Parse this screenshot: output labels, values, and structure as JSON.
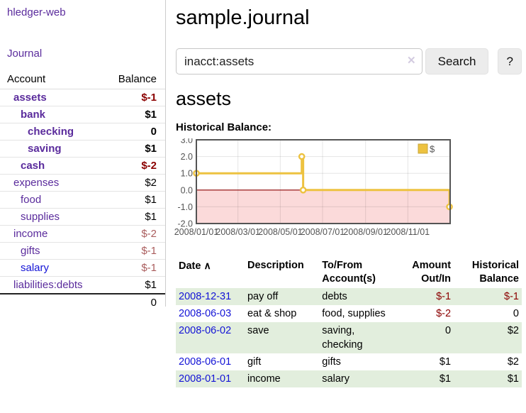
{
  "app": {
    "brand": "hledger-web",
    "nav_journal": "Journal"
  },
  "colors": {
    "link_purple": "#5a2b9c",
    "link_blue": "#1313d6",
    "negative_strong": "#8b0000",
    "negative_soft": "#aa5d5d",
    "row_green": "#e2eedd",
    "series_gold": "#edc240"
  },
  "sidebar": {
    "accounts_table": {
      "header_account": "Account",
      "header_balance": "Balance",
      "rows": [
        {
          "account": "assets",
          "balance": "$-1",
          "indent": 1,
          "bold": true,
          "balance_style": "neg-strong",
          "link": "purple"
        },
        {
          "account": "bank",
          "balance": "$1",
          "indent": 2,
          "bold": true,
          "balance_style": "",
          "link": "purple"
        },
        {
          "account": "checking",
          "balance": "0",
          "indent": 3,
          "bold": true,
          "balance_style": "",
          "link": "purple"
        },
        {
          "account": "saving",
          "balance": "$1",
          "indent": 3,
          "bold": true,
          "balance_style": "",
          "link": "purple"
        },
        {
          "account": "cash",
          "balance": "$-2",
          "indent": 2,
          "bold": true,
          "balance_style": "neg-strong",
          "link": "purple"
        },
        {
          "account": "expenses",
          "balance": "$2",
          "indent": 1,
          "bold": false,
          "balance_style": "",
          "link": "purple"
        },
        {
          "account": "food",
          "balance": "$1",
          "indent": 2,
          "bold": false,
          "balance_style": "",
          "link": "purple"
        },
        {
          "account": "supplies",
          "balance": "$1",
          "indent": 2,
          "bold": false,
          "balance_style": "",
          "link": "purple"
        },
        {
          "account": "income",
          "balance": "$-2",
          "indent": 1,
          "bold": false,
          "balance_style": "neg-soft",
          "link": "purple"
        },
        {
          "account": "gifts",
          "balance": "$-1",
          "indent": 2,
          "bold": false,
          "balance_style": "neg-soft",
          "link": "purple"
        },
        {
          "account": "salary",
          "balance": "$-1",
          "indent": 2,
          "bold": false,
          "balance_style": "neg-soft",
          "link": "blue"
        },
        {
          "account": "liabilities:debts",
          "balance": "$1",
          "indent": 1,
          "bold": false,
          "balance_style": "",
          "link": "purple"
        }
      ],
      "total": "0"
    }
  },
  "header": {
    "title": "sample.journal"
  },
  "search": {
    "value": "inacct:assets",
    "clear_icon": "✕",
    "button_label": "Search",
    "help_label": "?"
  },
  "account_page": {
    "heading": "assets",
    "chart_title": "Historical Balance:"
  },
  "chart_data": {
    "type": "line",
    "step": true,
    "title": "Historical Balance:",
    "legend": [
      {
        "label": "$",
        "color": "#edc240"
      }
    ],
    "legend_position": "top-right",
    "x_start": "2008-01-01",
    "x_total_days": 366,
    "x_ticks": [
      {
        "date": "2008-01-01",
        "label": "2008/01/01"
      },
      {
        "date": "2008-03-01",
        "label": "2008/03/01"
      },
      {
        "date": "2008-05-01",
        "label": "2008/05/01"
      },
      {
        "date": "2008-07-01",
        "label": "2008/07/01"
      },
      {
        "date": "2008-09-01",
        "label": "2008/09/01"
      },
      {
        "date": "2008-11-01",
        "label": "2008/11/01"
      }
    ],
    "y_ticks": [
      "3.0",
      "2.0",
      "1.0",
      "0.0",
      "-1.0",
      "-2.0"
    ],
    "ylim": [
      -2,
      3
    ],
    "grid": true,
    "series": [
      {
        "name": "$",
        "color": "#edc240",
        "points": [
          {
            "x": "2008-01-01",
            "y": 1
          },
          {
            "x": "2008-06-01",
            "y": 2
          },
          {
            "x": "2008-06-03",
            "y": 0
          },
          {
            "x": "2008-12-31",
            "y": -1
          }
        ]
      }
    ],
    "negative_region_color": "#fbdada",
    "zero_line_color": "#8b0000",
    "axis_text_color": "#545454",
    "border_color": "#545454"
  },
  "register_table": {
    "headers": {
      "date": "Date",
      "sort_icon": "∧",
      "description": "Description",
      "accounts": "To/From Account(s)",
      "amount": "Amount Out/In",
      "balance": "Historical Balance"
    },
    "rows": [
      {
        "date": "2008-12-31",
        "description": "pay off",
        "accounts": "debts",
        "amount": "$-1",
        "balance": "$-1",
        "amount_style": "neg-strong",
        "balance_style": "neg-strong"
      },
      {
        "date": "2008-06-03",
        "description": "eat & shop",
        "accounts": "food, supplies",
        "amount": "$-2",
        "balance": "0",
        "amount_style": "neg-strong",
        "balance_style": ""
      },
      {
        "date": "2008-06-02",
        "description": "save",
        "accounts": "saving, checking",
        "amount": "0",
        "balance": "$2",
        "amount_style": "",
        "balance_style": ""
      },
      {
        "date": "2008-06-01",
        "description": "gift",
        "accounts": "gifts",
        "amount": "$1",
        "balance": "$2",
        "amount_style": "",
        "balance_style": ""
      },
      {
        "date": "2008-01-01",
        "description": "income",
        "accounts": "salary",
        "amount": "$1",
        "balance": "$1",
        "amount_style": "",
        "balance_style": ""
      }
    ]
  }
}
